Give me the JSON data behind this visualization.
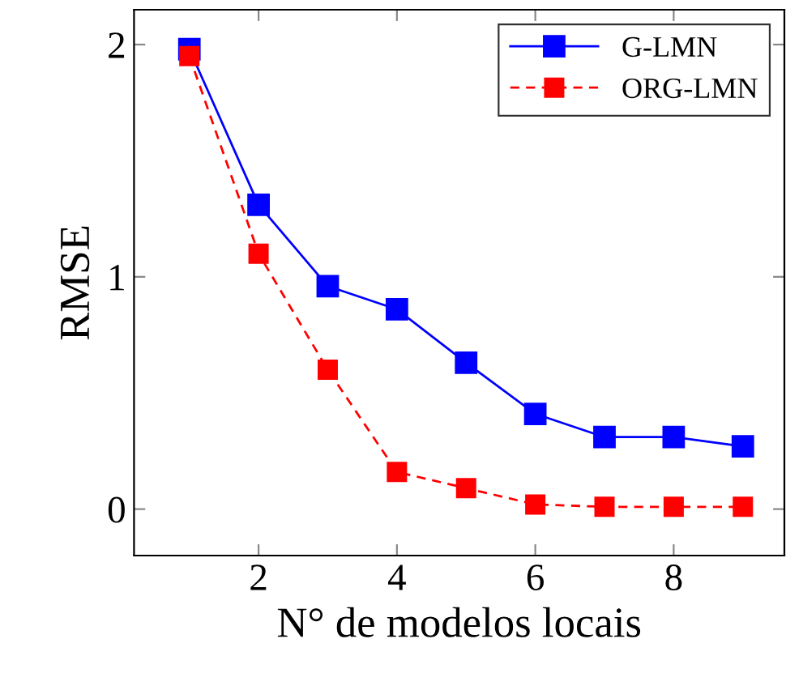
{
  "chart_data": {
    "type": "line",
    "xlabel": "N° de modelos locais",
    "ylabel": "RMSE",
    "x": [
      1,
      2,
      3,
      4,
      5,
      6,
      7,
      8,
      9
    ],
    "series": [
      {
        "name": "G-LMN",
        "color": "#0000ff",
        "line_style": "solid",
        "values": [
          1.98,
          1.31,
          0.96,
          0.86,
          0.63,
          0.41,
          0.31,
          0.31,
          0.27
        ]
      },
      {
        "name": "ORG-LMN",
        "color": "#ff0000",
        "line_style": "dashed",
        "values": [
          1.95,
          1.1,
          0.6,
          0.16,
          0.09,
          0.02,
          0.01,
          0.01,
          0.01
        ]
      }
    ],
    "marker": "square",
    "xlim": [
      0.2,
      9.6
    ],
    "ylim": [
      -0.2,
      2.15
    ],
    "xticks": [
      2,
      4,
      6,
      8
    ],
    "yticks": [
      0,
      1,
      2
    ],
    "grid": false,
    "legend": "top right"
  }
}
